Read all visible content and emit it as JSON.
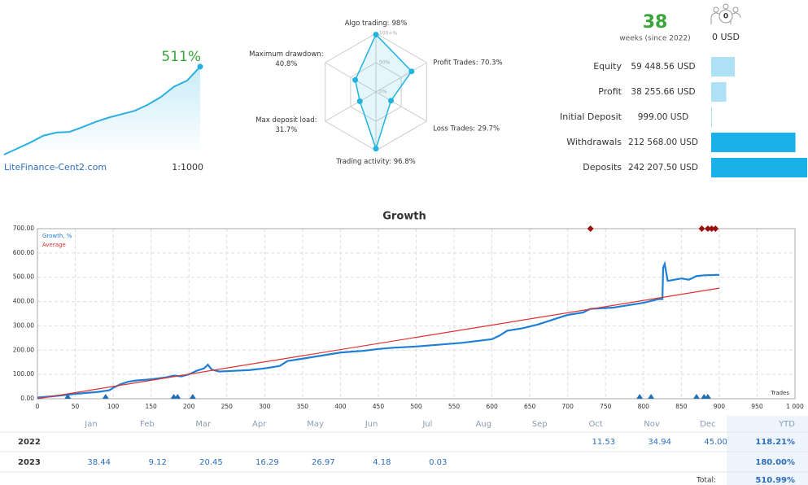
{
  "account": {
    "weeks": "38",
    "weeks_label": "weeks (since 2022)",
    "subscribers": "0",
    "amount": "0 USD"
  },
  "chart_data": [
    {
      "type": "area",
      "values": [
        0,
        35,
        70,
        110,
        128,
        132,
        160,
        190,
        215,
        235,
        255,
        290,
        335,
        395,
        430,
        511
      ],
      "ylim": [
        0,
        520
      ],
      "color": "#2ab0e0",
      "end_label": "511%",
      "footer_left": "LiteFinance-Cent2.com",
      "footer_right": "1:1000"
    },
    {
      "type": "radar",
      "categories": [
        "Algo trading:",
        "Profit Trades:",
        "Loss Trades:",
        "Trading activity:",
        "Max deposit load:",
        "Maximum drawdown:"
      ],
      "values": [
        98,
        70.3,
        29.7,
        96.8,
        31.7,
        40.8
      ],
      "value_labels": [
        "98%",
        "70.3%",
        "29.7%",
        "96.8%",
        "31.7%",
        "40.8%"
      ],
      "rlim": [
        0,
        100
      ],
      "rticks": [
        {
          "value": 0,
          "label": "0%"
        },
        {
          "value": 50,
          "label": "50%"
        },
        {
          "value": 100,
          "label": "100+%"
        }
      ],
      "color": "#1fb3e0"
    },
    {
      "type": "hbar",
      "categories": [
        "Equity",
        "Profit",
        "Initial Deposit",
        "Withdrawals",
        "Deposits"
      ],
      "values": [
        59448.56,
        38255.66,
        999.0,
        212568.0,
        242207.5
      ],
      "value_labels": [
        "59 448.56 USD",
        "38 255.66 USD",
        "999.00 USD",
        "212 568.00 USD",
        "242 207.50 USD"
      ],
      "colors": [
        "#aee1f5",
        "#aee1f5",
        "#aee1f5",
        "#1ab0e8",
        "#1ab0e8"
      ],
      "xlim": [
        0,
        242207.5
      ]
    },
    {
      "type": "line",
      "title": "Growth",
      "x_label": "Trades",
      "xlim": [
        0,
        1000
      ],
      "ylim": [
        0,
        700
      ],
      "xticks": [
        0,
        50,
        100,
        150,
        200,
        250,
        300,
        350,
        400,
        450,
        500,
        550,
        600,
        650,
        700,
        750,
        800,
        850,
        900,
        950,
        {
          "value": 1000,
          "label": "1 000"
        }
      ],
      "yticks": [
        {
          "value": 0,
          "label": "0.00"
        },
        {
          "value": 100,
          "label": "100.00"
        },
        {
          "value": 200,
          "label": "200.00"
        },
        {
          "value": 300,
          "label": "300.00"
        },
        {
          "value": 400,
          "label": "400.00"
        },
        {
          "value": 500,
          "label": "500.00"
        },
        {
          "value": 600,
          "label": "600.00"
        },
        {
          "value": 700,
          "label": "700.00"
        }
      ],
      "grid": true,
      "legend": "top-left",
      "series": [
        {
          "name": "Growth, %",
          "color": "#1e7fd6",
          "x": [
            0,
            20,
            50,
            80,
            95,
            100,
            110,
            120,
            130,
            150,
            170,
            180,
            190,
            200,
            210,
            220,
            225,
            230,
            240,
            260,
            280,
            300,
            320,
            330,
            350,
            380,
            400,
            420,
            430,
            450,
            470,
            500,
            520,
            540,
            560,
            600,
            610,
            620,
            640,
            660,
            680,
            700,
            720,
            730,
            760,
            780,
            800,
            820,
            825,
            826,
            828,
            832,
            850,
            860,
            870,
            880,
            900
          ],
          "values": [
            5,
            10,
            20,
            28,
            35,
            45,
            60,
            70,
            75,
            80,
            88,
            95,
            92,
            100,
            115,
            125,
            140,
            120,
            112,
            115,
            118,
            125,
            135,
            155,
            165,
            180,
            190,
            195,
            197,
            205,
            210,
            215,
            220,
            225,
            230,
            245,
            260,
            280,
            290,
            305,
            325,
            345,
            355,
            370,
            375,
            385,
            395,
            410,
            410,
            540,
            555,
            485,
            495,
            490,
            505,
            508,
            510
          ]
        },
        {
          "name": "Average",
          "color": "#e03030",
          "x": [
            0,
            900
          ],
          "values": [
            0,
            455
          ]
        }
      ],
      "markers": [
        {
          "shape": "triangle",
          "position": "bottom",
          "color": "#1f6fb5",
          "x": [
            40,
            90,
            180,
            185,
            205,
            795,
            810,
            870,
            880,
            885
          ]
        },
        {
          "shape": "diamond",
          "position": "top",
          "color": "#9b1010",
          "x": [
            730,
            877,
            885,
            890,
            895
          ]
        }
      ]
    }
  ],
  "table": {
    "columns": [
      "Jan",
      "Feb",
      "Mar",
      "Apr",
      "May",
      "Jun",
      "Jul",
      "Aug",
      "Sep",
      "Oct",
      "Nov",
      "Dec"
    ],
    "ytd_header": "YTD",
    "rows": [
      {
        "year": "2022",
        "cells": [
          null,
          null,
          null,
          null,
          null,
          null,
          null,
          null,
          null,
          "11.53",
          "34.94",
          "45.00"
        ],
        "ytd": "118.21%"
      },
      {
        "year": "2023",
        "cells": [
          "38.44",
          "9.12",
          "20.45",
          "16.29",
          "26.97",
          "4.18",
          "0.03",
          null,
          null,
          null,
          null,
          null
        ],
        "ytd": "180.00%"
      }
    ],
    "total_label": "Total:",
    "total": "510.99%"
  }
}
